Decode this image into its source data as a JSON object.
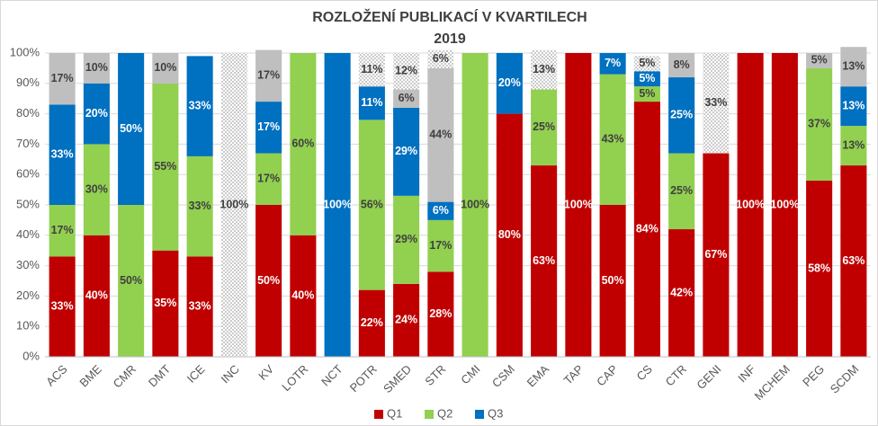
{
  "chart_data": {
    "type": "stacked_bar",
    "title": "ROZLOŽENÍ PUBLIKACÍ V KVARTILECH",
    "subtitle": "2019",
    "categories": [
      "ACS",
      "BME",
      "CMR",
      "DMT",
      "ICE",
      "INC",
      "KV",
      "LOTR",
      "NCT",
      "POTR",
      "SMED",
      "STR",
      "CMI",
      "CSM",
      "EMA",
      "TAP",
      "CAP",
      "CS",
      "CTR",
      "GENI",
      "INF",
      "MCHEM",
      "PEG",
      "SCDM"
    ],
    "ylim": [
      0,
      100
    ],
    "yticks": [
      {
        "value": 0,
        "label": "0%"
      },
      {
        "value": 10,
        "label": "10%"
      },
      {
        "value": 20,
        "label": "20%"
      },
      {
        "value": 30,
        "label": "30%"
      },
      {
        "value": 40,
        "label": "40%"
      },
      {
        "value": 50,
        "label": "50%"
      },
      {
        "value": 60,
        "label": "60%"
      },
      {
        "value": 70,
        "label": "70%"
      },
      {
        "value": 80,
        "label": "80%"
      },
      {
        "value": 90,
        "label": "90%"
      },
      {
        "value": 100,
        "label": "100%"
      }
    ],
    "grid": true,
    "legend": "bottom",
    "series": [
      {
        "name": "Q1",
        "color": "#c00000",
        "label_color": "#ffffff",
        "values": [
          33,
          40,
          0,
          35,
          33,
          0,
          50,
          40,
          0,
          22,
          24,
          28,
          0,
          80,
          63,
          100,
          50,
          84,
          42,
          67,
          100,
          100,
          58,
          63
        ],
        "value_labels": [
          "33%",
          "40%",
          null,
          "35%",
          "33%",
          null,
          "50%",
          "40%",
          null,
          "22%",
          "24%",
          "28%",
          null,
          "80%",
          "63%",
          "100%",
          "50%",
          "84%",
          "42%",
          "67%",
          "100%",
          "100%",
          "58%",
          "63%"
        ]
      },
      {
        "name": "Q2",
        "color": "#92d050",
        "label_color": "#404040",
        "values": [
          17,
          30,
          50,
          55,
          33,
          0,
          17,
          60,
          0,
          56,
          29,
          17,
          100,
          0,
          25,
          0,
          43,
          5,
          25,
          0,
          0,
          0,
          37,
          13
        ],
        "value_labels": [
          "17%",
          "30%",
          "50%",
          "55%",
          "33%",
          null,
          "17%",
          "60%",
          null,
          "56%",
          "29%",
          "17%",
          "100%",
          null,
          "25%",
          null,
          "43%",
          "5%",
          "25%",
          null,
          null,
          null,
          "37%",
          "13%"
        ]
      },
      {
        "name": "Q3",
        "color": "#0070c0",
        "label_color": "#ffffff",
        "values": [
          33,
          20,
          50,
          0,
          33,
          0,
          17,
          0,
          100,
          11,
          29,
          6,
          0,
          20,
          0,
          0,
          7,
          5,
          25,
          0,
          0,
          0,
          0,
          13
        ],
        "value_labels": [
          "33%",
          "20%",
          "50%",
          null,
          "33%",
          null,
          "17%",
          null,
          "100%",
          "11%",
          "29%",
          "6%",
          null,
          "20%",
          null,
          null,
          "7%",
          "5%",
          "25%",
          null,
          null,
          null,
          null,
          "13%"
        ]
      },
      {
        "color": "#bfbfbf",
        "label_color": "#404040",
        "values": [
          17,
          10,
          0,
          10,
          0,
          0,
          17,
          0,
          0,
          0,
          6,
          44,
          0,
          0,
          0,
          0,
          0,
          0,
          8,
          0,
          0,
          0,
          5,
          13
        ],
        "value_labels": [
          "17%",
          "10%",
          null,
          "10%",
          null,
          null,
          "17%",
          null,
          null,
          null,
          "6%",
          "44%",
          null,
          null,
          null,
          null,
          null,
          null,
          "8%",
          null,
          null,
          null,
          "5%",
          "13%"
        ]
      },
      {
        "color": "#d0d0d0",
        "pattern": "dots",
        "label_color": "#404040",
        "values": [
          0,
          0,
          0,
          0,
          0,
          100,
          0,
          0,
          0,
          11,
          12,
          6,
          0,
          0,
          13,
          0,
          0,
          5,
          0,
          33,
          0,
          0,
          0,
          0
        ],
        "value_labels": [
          null,
          null,
          null,
          null,
          null,
          "100%",
          null,
          null,
          null,
          "11%",
          "12%",
          "6%",
          null,
          null,
          "13%",
          null,
          null,
          "5%",
          null,
          "33%",
          null,
          null,
          null,
          null
        ]
      }
    ]
  }
}
